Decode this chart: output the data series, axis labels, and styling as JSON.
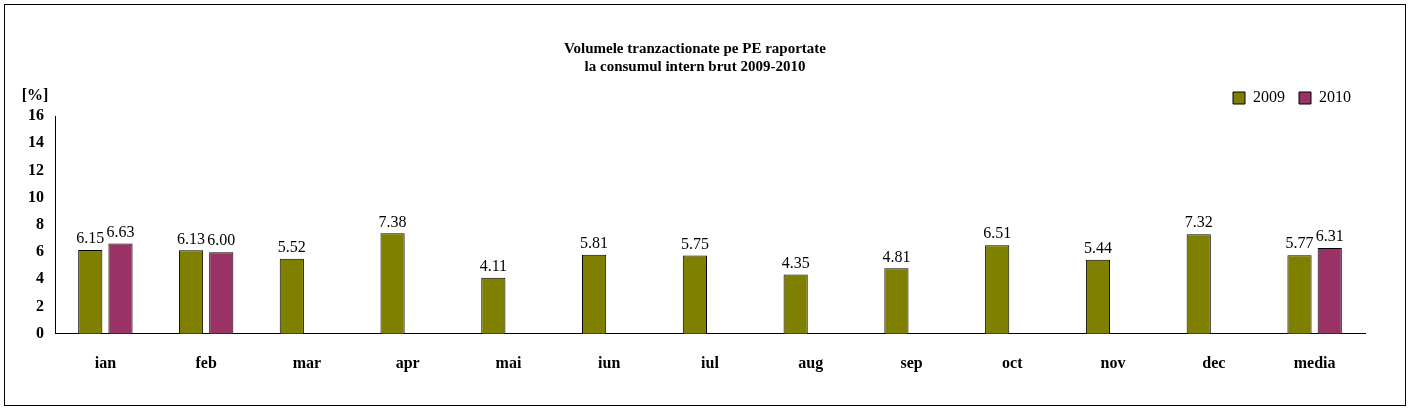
{
  "chart_data": {
    "type": "bar",
    "title": [
      "Volumele tranzactionate pe PE raportate",
      "la consumul intern brut 2009-2010"
    ],
    "ylabel": "[%]",
    "categories": [
      "ian",
      "feb",
      "mar",
      "apr",
      "mai",
      "iun",
      "iul",
      "aug",
      "sep",
      "oct",
      "nov",
      "dec",
      "media"
    ],
    "series": [
      {
        "name": "2009",
        "color": "#808000",
        "values": [
          6.15,
          6.13,
          5.52,
          7.38,
          4.11,
          5.81,
          5.75,
          4.35,
          4.81,
          6.51,
          5.44,
          7.32,
          5.77
        ],
        "value_labels": [
          "6.15",
          "6.13",
          "5.52",
          "7.38",
          "4.11",
          "5.81",
          "5.75",
          "4.35",
          "4.81",
          "6.51",
          "5.44",
          "7.32",
          "5.77"
        ]
      },
      {
        "name": "2010",
        "color": "#993366",
        "values": [
          6.63,
          6.0,
          null,
          null,
          null,
          null,
          null,
          null,
          null,
          null,
          null,
          null,
          6.31
        ],
        "value_labels": [
          "6.63",
          "6.00",
          null,
          null,
          null,
          null,
          null,
          null,
          null,
          null,
          null,
          null,
          "6.31"
        ]
      }
    ],
    "ylim": [
      0,
      16
    ],
    "yticks": [
      0,
      2,
      4,
      6,
      8,
      10,
      12,
      14,
      16
    ],
    "grid": false,
    "legend": "top right"
  }
}
